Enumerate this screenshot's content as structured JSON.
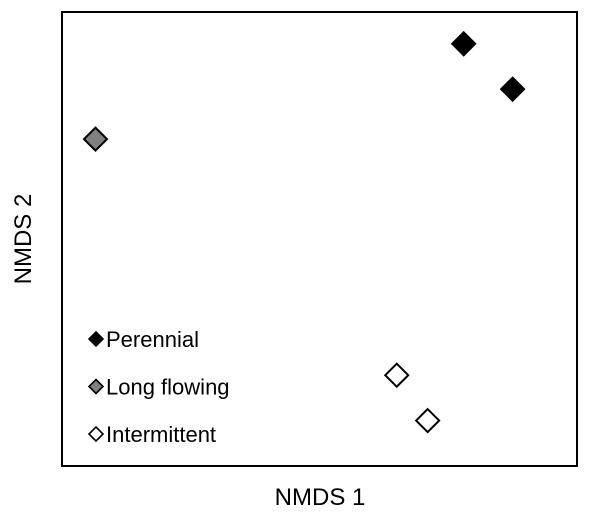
{
  "chart_data": {
    "type": "scatter",
    "xlabel": "NMDS 1",
    "ylabel": "NMDS 2",
    "xlim": [
      0,
      100
    ],
    "ylim": [
      0,
      100
    ],
    "grid": false,
    "legend_position": "bottom-left",
    "series": [
      {
        "name": "Perennial",
        "marker": "diamond",
        "fill": "#000000",
        "stroke": "#000000",
        "points": [
          {
            "x": 78,
            "y": 93
          },
          {
            "x": 87.5,
            "y": 83
          }
        ]
      },
      {
        "name": "Long flowing",
        "marker": "diamond",
        "fill": "#808080",
        "stroke": "#000000",
        "points": [
          {
            "x": 6.5,
            "y": 72
          }
        ]
      },
      {
        "name": "Intermittent",
        "marker": "diamond",
        "fill": "#ffffff",
        "stroke": "#000000",
        "points": [
          {
            "x": 65,
            "y": 20
          },
          {
            "x": 71,
            "y": 10
          }
        ]
      }
    ]
  }
}
